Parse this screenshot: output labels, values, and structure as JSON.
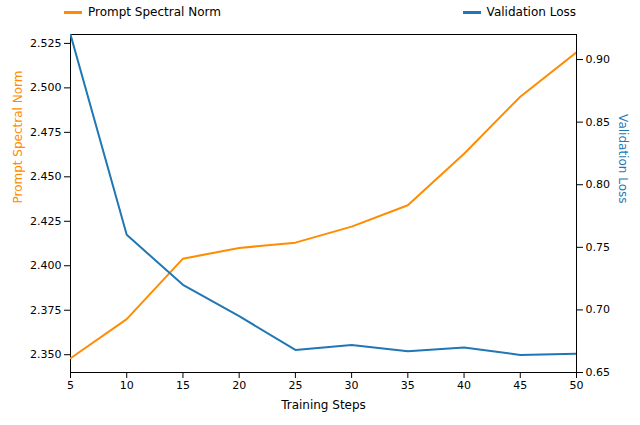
{
  "chart_data": {
    "type": "line",
    "x": [
      5,
      10,
      15,
      20,
      25,
      30,
      35,
      40,
      45,
      50
    ],
    "xlabel": "Training Steps",
    "ylabel": "Prompt Spectral Norm",
    "y2label": "Validation Loss",
    "xlim": [
      5,
      50
    ],
    "xticks": [
      5,
      10,
      15,
      20,
      25,
      30,
      35,
      40,
      45,
      50
    ],
    "ylim": [
      2.34,
      2.53
    ],
    "yticks": [
      {
        "value": 2.35,
        "label": "2.350"
      },
      {
        "value": 2.375,
        "label": "2.375"
      },
      {
        "value": 2.4,
        "label": "2.400"
      },
      {
        "value": 2.425,
        "label": "2.425"
      },
      {
        "value": 2.45,
        "label": "2.450"
      },
      {
        "value": 2.475,
        "label": "2.475"
      },
      {
        "value": 2.5,
        "label": "2.500"
      },
      {
        "value": 2.525,
        "label": "2.525"
      }
    ],
    "y2lim": [
      0.65,
      0.92
    ],
    "y2ticks": [
      {
        "value": 0.65,
        "label": "0.65"
      },
      {
        "value": 0.7,
        "label": "0.70"
      },
      {
        "value": 0.75,
        "label": "0.75"
      },
      {
        "value": 0.8,
        "label": "0.80"
      },
      {
        "value": 0.85,
        "label": "0.85"
      },
      {
        "value": 0.9,
        "label": "0.90"
      }
    ],
    "legend": "top",
    "series": [
      {
        "name": "Prompt Spectral Norm",
        "color": "#FF8C00",
        "values": [
          2.348,
          2.37,
          2.404,
          2.41,
          2.413,
          2.422,
          2.434,
          2.463,
          2.495,
          2.52
        ]
      },
      {
        "name": "Validation Loss",
        "color": "#1F77B4",
        "axis": "y2",
        "values": [
          0.92,
          0.76,
          0.72,
          0.695,
          0.668,
          0.672,
          0.667,
          0.67,
          0.664,
          0.665
        ]
      }
    ]
  }
}
